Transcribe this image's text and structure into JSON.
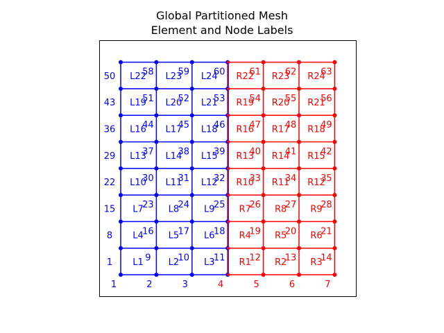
{
  "figure": {
    "title_line1": "Global Partitioned Mesh",
    "title_line2": "Element and Node Labels"
  },
  "colors": {
    "left": "#0000ff",
    "right": "#ff0000",
    "frame": "#000000"
  },
  "mesh": {
    "columns": 7,
    "rows": 9,
    "interface_column": 4,
    "left_prefix": "L",
    "right_prefix": "R",
    "left_elements_per_row": 3,
    "right_elements_per_row": 3,
    "element_rows": 8
  }
}
